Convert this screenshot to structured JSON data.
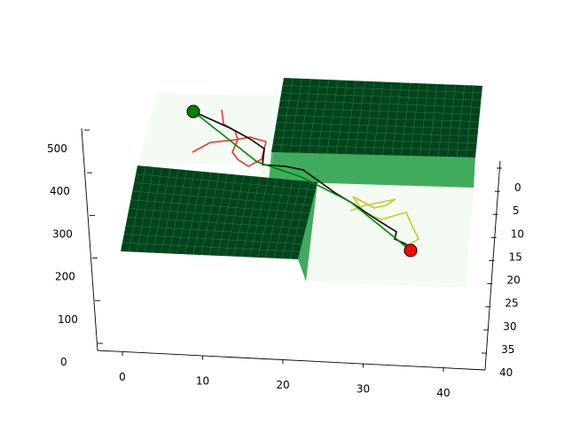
{
  "chart_data": {
    "type": "3d-surface",
    "title": "",
    "xlabel": "",
    "ylabel": "",
    "zlabel": "",
    "grid": false,
    "axes": {
      "x": {
        "ticks": [
          "0",
          "10",
          "20",
          "30",
          "40"
        ]
      },
      "y": {
        "ticks": [
          "0",
          "5",
          "10",
          "15",
          "20",
          "25",
          "30",
          "35",
          "40"
        ]
      },
      "z": {
        "ticks": [
          "0",
          "100",
          "200",
          "300",
          "400",
          "500"
        ]
      }
    },
    "obstacles": [
      {
        "name": "",
        "color": "#00441b"
      },
      {
        "name": "",
        "color": "#00441b"
      }
    ],
    "paths": [
      {
        "name": "",
        "color": "#000000"
      },
      {
        "name": "",
        "color": "#008000"
      },
      {
        "name": "",
        "color": "#e8353a"
      },
      {
        "name": "",
        "color": "#c9c92a"
      }
    ],
    "markers": [
      {
        "name": "",
        "color": "#008000"
      },
      {
        "name": "",
        "color": "#ff0000"
      }
    ],
    "colors": {
      "floor": "#f4fbf2",
      "block_top": "#00441b",
      "block_side": "#41ab5d",
      "grid_line": "#3a7a52"
    }
  }
}
